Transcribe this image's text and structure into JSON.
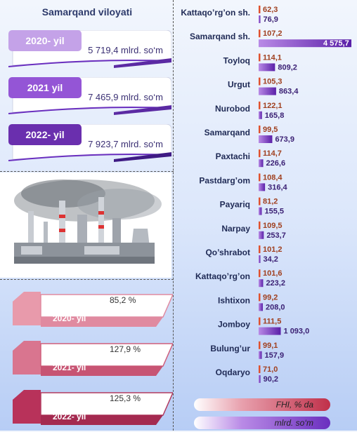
{
  "header": {
    "title": "Samarqand viloyati"
  },
  "years": [
    {
      "label": "2020- yil",
      "value": "5 719,4 mlrd. so‘m"
    },
    {
      "label": "2021 yil",
      "value": "7 465,9 mlrd. so‘m"
    },
    {
      "label": "2022- yil",
      "value": "7 923,7 mlrd. so‘m"
    }
  ],
  "growth": [
    {
      "label": "2020- yil",
      "value": "85,2 %"
    },
    {
      "label": "2021- yil",
      "value": "127,9 %"
    },
    {
      "label": "2022- yil",
      "value": "125,3 %"
    }
  ],
  "legend": {
    "fhi": "FHI, % da",
    "mlrd": "mlrd. so‘m"
  },
  "colors": {
    "accent_purple": "#7a3cc7",
    "accent_red": "#e0502d",
    "card_pink": "#e08aa0"
  },
  "chart_data": {
    "type": "bar",
    "categories": [
      "Kattaqo’rg’on sh.",
      "Samarqand sh.",
      "Toyloq",
      "Urgut",
      "Nurobod",
      "Samarqand",
      "Paxtachi",
      "Pastdarg’om",
      "Payariq",
      "Narpay",
      "Qo’shrabot",
      "Kattaqo’rg’on",
      "Ishtixon",
      "Jomboy",
      "Bulung’ur",
      "Oqdaryo"
    ],
    "series": [
      {
        "name": "FHI, % da",
        "values": [
          62.3,
          107.2,
          114.1,
          105.3,
          122.1,
          99.5,
          114.7,
          108.4,
          81.2,
          109.5,
          101.2,
          101.6,
          99.2,
          111.5,
          99.1,
          71.0
        ],
        "labels": [
          "62,3",
          "107,2",
          "114,1",
          "105,3",
          "122,1",
          "99,5",
          "114,7",
          "108,4",
          "81,2",
          "109,5",
          "101,2",
          "101,6",
          "99,2",
          "111,5",
          "99,1",
          "71,0"
        ]
      },
      {
        "name": "mlrd. so‘m",
        "values": [
          76.9,
          4575.7,
          809.2,
          863.4,
          165.8,
          673.9,
          226.6,
          316.4,
          155.5,
          253.7,
          34.2,
          223.2,
          208.0,
          1093.0,
          157.9,
          90.2
        ],
        "labels": [
          "76,9",
          "4 575,7",
          "809,2",
          "863,4",
          "165,8",
          "673,9",
          "226,6",
          "316,4",
          "155,5",
          "253,7",
          "34,2",
          "223,2",
          "208,0",
          "1 093,0",
          "157,9",
          "90,2"
        ]
      }
    ]
  }
}
